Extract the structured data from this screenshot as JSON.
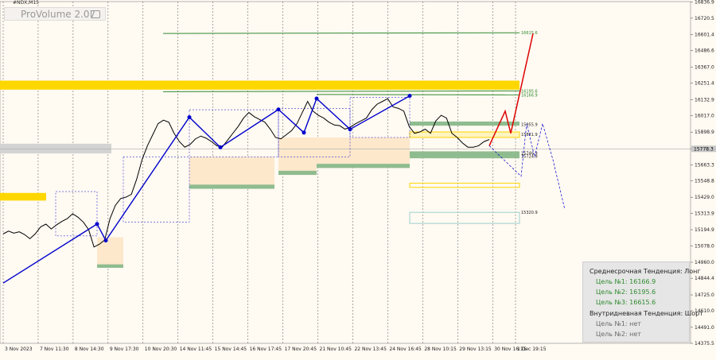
{
  "chart_data": {
    "type": "line",
    "symbol": "#NDX,M15",
    "ylim": [
      14375.5,
      16840
    ],
    "y_ticks": [
      "16836.9",
      "16720.5",
      "16601.4",
      "16486.6",
      "16367.0",
      "16251.4",
      "16132.9",
      "16017.0",
      "15898.9",
      "15779.3",
      "15663.3",
      "15548.8",
      "15429.0",
      "15313.9",
      "15194.9",
      "15078.0",
      "14960.0",
      "14844.4",
      "14725.0",
      "14610.0",
      "14491.0",
      "14375.5"
    ],
    "x_ticks": [
      "3 Nov 2023",
      "7 Nov 11:30",
      "8 Nov 14:30",
      "9 Nov 17:30",
      "10 Nov 20:30",
      "14 Nov 11:45",
      "15 Nov 14:45",
      "16 Nov 17:45",
      "17 Nov 20:45",
      "21 Nov 10:45",
      "22 Nov 13:45",
      "24 Nov 16:45",
      "28 Nov 10:15",
      "29 Nov 13:15",
      "30 Nov 16:15",
      "1 Dec 19:15"
    ],
    "current_price": "15778.3",
    "price_series": [
      15165,
      15185,
      15170,
      15180,
      15160,
      15130,
      15165,
      15215,
      15235,
      15200,
      15230,
      15255,
      15275,
      15310,
      15285,
      15250,
      15195,
      15070,
      15090,
      15120,
      15275,
      15370,
      15420,
      15430,
      15450,
      15560,
      15700,
      15800,
      15880,
      15960,
      15985,
      15970,
      15890,
      15830,
      15790,
      15810,
      15850,
      15870,
      15855,
      15830,
      15800,
      15790,
      15840,
      15890,
      15940,
      16000,
      16040,
      16010,
      15990,
      15970,
      15920,
      15860,
      15850,
      15880,
      15910,
      15960,
      16040,
      16120,
      16050,
      16020,
      16000,
      15970,
      15950,
      15945,
      15920,
      15935,
      15960,
      15980,
      16000,
      16060,
      16100,
      16120,
      16140,
      16080,
      16070,
      16050,
      15940,
      15890,
      15900,
      15920,
      15890,
      15980,
      16020,
      16000,
      15890,
      15860,
      15820,
      15790,
      15790,
      15800,
      15830,
      15845
    ],
    "trend_points": [
      [
        14810,
        "b"
      ],
      [
        15236,
        "b"
      ],
      [
        15117,
        "b"
      ],
      [
        16006,
        "b"
      ],
      [
        15789,
        "b"
      ],
      [
        16062,
        "b"
      ],
      [
        15895,
        "b"
      ],
      [
        16141,
        "b"
      ],
      [
        15919,
        "b"
      ],
      [
        16160,
        "b"
      ]
    ],
    "level_labels": [
      "16615.6",
      "16195.6",
      "16166.9",
      "15955.9",
      "15881.9",
      "15746.9",
      "15724.9",
      "15320.9"
    ]
  },
  "watermark": "ProVolume 2.07",
  "info_panel": {
    "mid_heading": "Среднесрочная Тенденция: Лонг",
    "mid_targets": [
      "Цель №1:  16166.9",
      "Цель №2:  16195.6",
      "Цель №3:  16615.6"
    ],
    "intra_heading": "Внутридневная Тенденция: Шорт",
    "intra_targets": [
      "Цель №1:  нет",
      "Цель №2:  нет"
    ]
  },
  "colors": {
    "background": "#fffaf2",
    "yellow_zone": "#ffd700",
    "green_zone": "#8fbc8f",
    "gray_zone": "#d3d3d3",
    "trend_blue": "#0000cd",
    "forecast_red": "#dd0000",
    "target_green": "#2f8a2f",
    "price_line": "#000000"
  }
}
